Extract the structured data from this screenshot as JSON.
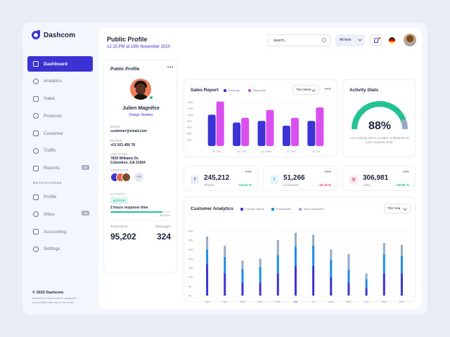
{
  "app": {
    "name": "Dashcom"
  },
  "sidebar": {
    "items": [
      {
        "label": "Dashboard",
        "active": true,
        "icon": "dashboard-icon"
      },
      {
        "label": "Analytics",
        "icon": "analytics-icon"
      },
      {
        "label": "Sales",
        "icon": "sales-icon"
      },
      {
        "label": "Products",
        "icon": "products-icon"
      },
      {
        "label": "Customer",
        "icon": "customer-icon"
      },
      {
        "label": "Traffic",
        "icon": "traffic-icon"
      },
      {
        "label": "Reports",
        "icon": "reports-icon",
        "badge": "17"
      }
    ],
    "section_label": "NOTIFICATIONS",
    "items2": [
      {
        "label": "Profile",
        "icon": "profile-icon"
      },
      {
        "label": "Inbox",
        "icon": "inbox-icon",
        "badge": "14"
      },
      {
        "label": "Accounting",
        "icon": "accounting-icon"
      },
      {
        "label": "Settings",
        "icon": "settings-icon"
      }
    ],
    "footer_title": "© 2020 Dashcom",
    "footer_text": "Beautiful UI components, designed handcrafted with eye to the detail."
  },
  "header": {
    "title": "Public Profile",
    "subtitle": "12:15 PM at 19th November 2020",
    "search_value": "search...",
    "time_filter": "All time"
  },
  "profile": {
    "title": "Public Profile",
    "name": "Julien Magnifce",
    "role": "Design Student",
    "email_label": "EMAIL",
    "email": "customer@email.com",
    "phone_label": "PHONE",
    "phone": "+01 923 456 78",
    "location_label": "LOCATION",
    "location_line1": "7839 Williams Dr.",
    "location_line2": "Columbus, GA 31904",
    "contacts_label": "CONTACTS",
    "contacts_more": "+76",
    "activity_label": "ACTIVITY",
    "activity_status": "ACTIVE",
    "response_time": "2 hours response time",
    "progress_fraction": 0.86,
    "progress_text": "86/100%",
    "total_views_label": "Total Views",
    "total_views": "95,202",
    "messages_label": "Messages",
    "messages": "324"
  },
  "sales_report": {
    "title": "Sales Report",
    "filter": "This Week",
    "legend": [
      "Earnings",
      "Payments"
    ]
  },
  "activity_stats": {
    "title": "Activity Stats",
    "percent": "88%",
    "value": 0.88,
    "note": "Your activity rate is on 88%. It depends on your response time."
  },
  "stats": [
    {
      "icon": "facebook-icon",
      "glyph": "f",
      "value": "245,212",
      "label": "Shares",
      "delta": "+16,24 %",
      "color": "#3b5998",
      "bg": "#e8edf7",
      "delta_color": "#1bbf83"
    },
    {
      "icon": "twitter-icon",
      "glyph": "t",
      "value": "51,266",
      "label": "Comments",
      "delta": "-10,78 %",
      "color": "#1da1f2",
      "bg": "#e6f4fd",
      "delta_color": "#ff3b5c"
    },
    {
      "icon": "instagram-icon",
      "glyph": "◎",
      "value": "306,981",
      "label": "Likes",
      "delta": "+20,90 %",
      "color": "#e1306c",
      "bg": "#fde8ef",
      "delta_color": "#1bbf83"
    }
  ],
  "customer_analytics": {
    "title": "Customer Analytics",
    "filter": "This Year",
    "legend": [
      "Current Clients",
      "Subscribers",
      "New Customers"
    ]
  },
  "colors": {
    "accent": "#3b33d4",
    "pink": "#d94ff0",
    "blue": "#1d8de4",
    "grey_blue": "#98abc4",
    "green": "#22c38e"
  },
  "chart_data": [
    {
      "type": "bar",
      "title": "Sales Report",
      "categories": [
        "09. Mo",
        "10. Tue",
        "11. Wed",
        "12. Thu",
        "13. Fri"
      ],
      "series": [
        {
          "name": "Earnings",
          "values": [
            1000,
            750,
            800,
            650,
            800
          ]
        },
        {
          "name": "Payments",
          "values": [
            1420,
            900,
            1150,
            900,
            1230
          ]
        }
      ],
      "yticks": [
        200,
        400,
        600,
        800,
        1000,
        1200,
        1400
      ],
      "ylim": [
        0,
        1500
      ],
      "legend": "top"
    },
    {
      "type": "bar",
      "title": "Customer Analytics",
      "stacked": true,
      "categories": [
        "Jan",
        "Feb",
        "Mar",
        "Apr",
        "May",
        "Jun",
        "Jul",
        "Aug",
        "Sep",
        "Oct",
        "Nov",
        "Dec"
      ],
      "series": [
        {
          "name": "Current Clients",
          "values": [
            17000,
            12000,
            7000,
            7000,
            12000,
            16000,
            16000,
            10000,
            7000,
            4000,
            12000,
            12000
          ]
        },
        {
          "name": "Subscribers",
          "values": [
            8000,
            9000,
            7500,
            8500,
            10000,
            10500,
            11000,
            9500,
            7000,
            5000,
            10500,
            9500
          ]
        },
        {
          "name": "New Customers",
          "values": [
            7000,
            6000,
            4500,
            4500,
            8000,
            7500,
            6000,
            5500,
            8500,
            3000,
            6000,
            6000
          ]
        }
      ],
      "yticks": [
        "0k",
        "5k",
        "10k",
        "15k",
        "20k",
        "25k",
        "30k",
        "40k"
      ],
      "ylim": [
        0,
        35000
      ],
      "legend": "top"
    }
  ]
}
